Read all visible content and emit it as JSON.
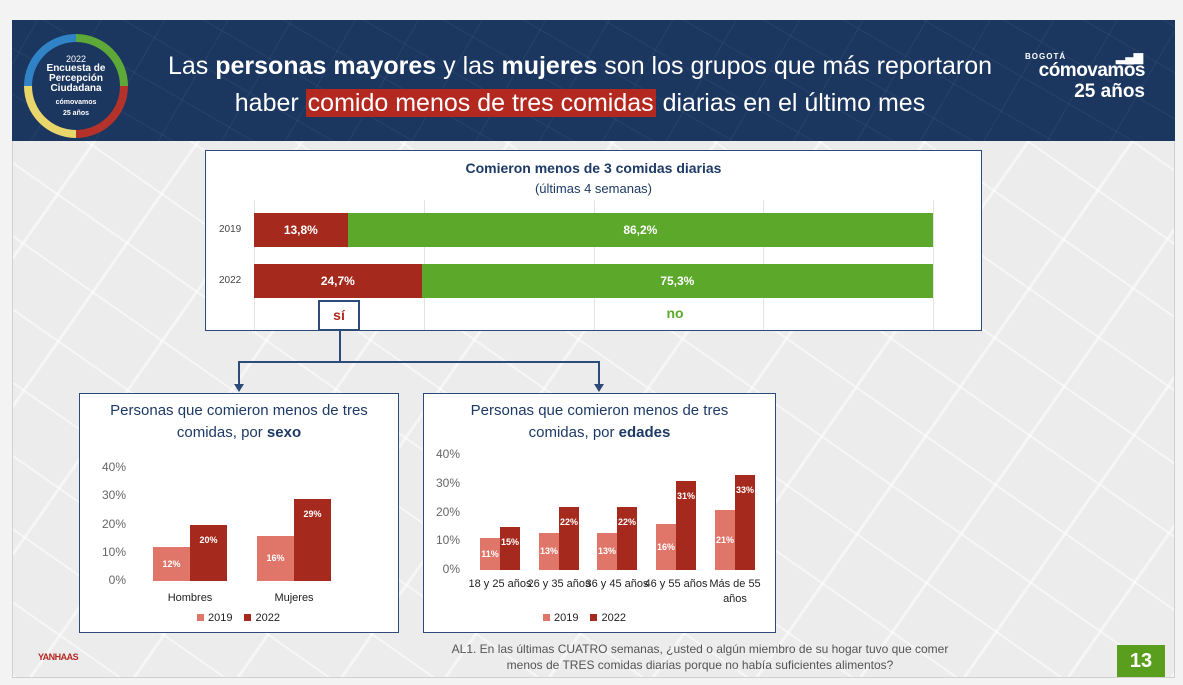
{
  "header": {
    "badge": {
      "year": "2022",
      "line1": "Encuesta de",
      "line2": "Percepción",
      "line3": "Ciudadana",
      "brand": "cómovamos",
      "years": "25 años"
    },
    "title_parts": [
      {
        "text": "Las ",
        "bold": false
      },
      {
        "text": "personas mayores",
        "bold": true
      },
      {
        "text": " y las ",
        "bold": false
      },
      {
        "text": "mujeres",
        "bold": true
      },
      {
        "text": " son los grupos que más reportaron",
        "bold": false
      }
    ],
    "title_line2_pre": "haber ",
    "title_line2_highlight": "comido menos de tres comidas",
    "title_line2_post": " diarias en el último mes",
    "logo": {
      "city": "BOGOTÁ",
      "brand": "cómovamos",
      "years": "25 años"
    }
  },
  "colors": {
    "navy": "#1b365f",
    "red_2022": "#a52a1d",
    "salmon_2019": "#e0766a",
    "green_no": "#5ba82a",
    "yes_red": "#a52a1d"
  },
  "chart_data": [
    {
      "type": "bar",
      "orientation": "horizontal",
      "stacked": true,
      "title": "Comieron menos de 3 comidas diarias",
      "subtitle": "(últimas 4 semanas)",
      "categories": [
        "2019",
        "2022"
      ],
      "series": [
        {
          "name": "sí",
          "values": [
            13.8,
            24.7
          ],
          "labels": [
            "13,8%",
            "24,7%"
          ]
        },
        {
          "name": "no",
          "values": [
            86.2,
            75.3
          ],
          "labels": [
            "86,2%",
            "75,3%"
          ]
        }
      ]
    },
    {
      "type": "bar",
      "title_pre": "Personas que comieron menos de tres comidas, por ",
      "title_bold": "sexo",
      "categories": [
        "Hombres",
        "Mujeres"
      ],
      "ylim": [
        0,
        40
      ],
      "yticks": [
        "0%",
        "10%",
        "20%",
        "30%",
        "40%"
      ],
      "series": [
        {
          "name": "2019",
          "values": [
            12,
            16
          ]
        },
        {
          "name": "2022",
          "values": [
            20,
            29
          ]
        }
      ],
      "legend": "bottom"
    },
    {
      "type": "bar",
      "title_pre": "Personas que comieron menos de tres comidas, por ",
      "title_bold": "edades",
      "categories": [
        "18 y 25 años",
        "26 y 35 años",
        "36 y 45 años",
        "46 y 55 años",
        "Más de 55 años"
      ],
      "ylim": [
        0,
        40
      ],
      "yticks": [
        "0%",
        "10%",
        "20%",
        "30%",
        "40%"
      ],
      "series": [
        {
          "name": "2019",
          "values": [
            11,
            13,
            13,
            16,
            21
          ]
        },
        {
          "name": "2022",
          "values": [
            15,
            22,
            22,
            31,
            33
          ]
        }
      ],
      "legend": "bottom"
    }
  ],
  "footer": {
    "question": "AL1. En las últimas CUATRO semanas, ¿usted o algún miembro de su hogar tuvo que comer menos de TRES comidas diarias porque no había suficientes alimentos?",
    "page": "13",
    "logo": "YANHAAS"
  }
}
